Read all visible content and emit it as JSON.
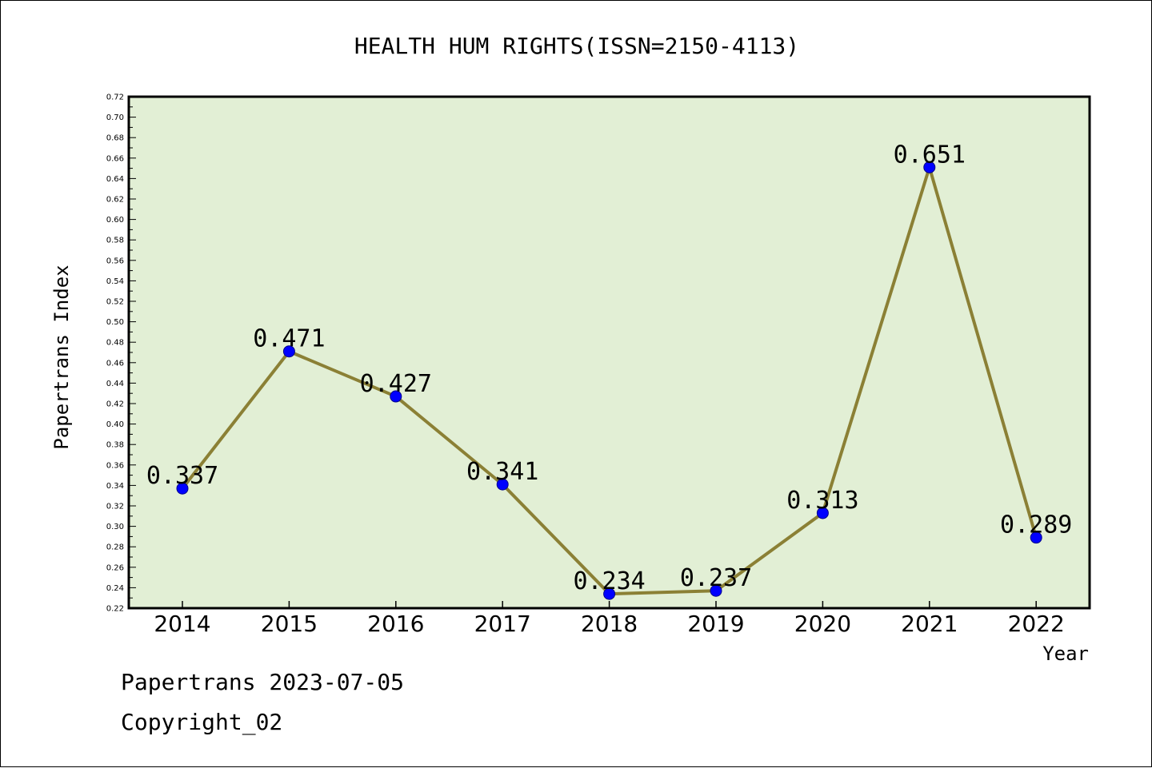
{
  "chart_data": {
    "type": "line",
    "title": "HEALTH HUM RIGHTS(ISSN=2150-4113)",
    "xlabel": "Year",
    "ylabel": "Papertrans Index",
    "categories": [
      "2014",
      "2015",
      "2016",
      "2017",
      "2018",
      "2019",
      "2020",
      "2021",
      "2022"
    ],
    "values": [
      0.337,
      0.471,
      0.427,
      0.341,
      0.234,
      0.237,
      0.313,
      0.651,
      0.289
    ],
    "data_labels": [
      "0.337",
      "0.471",
      "0.427",
      "0.341",
      "0.234",
      "0.237",
      "0.313",
      "0.651",
      "0.289"
    ],
    "ylim": [
      0.22,
      0.72
    ],
    "yticks": [
      "0.22",
      "0.24",
      "0.26",
      "0.28",
      "0.30",
      "0.32",
      "0.34",
      "0.36",
      "0.38",
      "0.40",
      "0.42",
      "0.44",
      "0.46",
      "0.48",
      "0.50",
      "0.52",
      "0.54",
      "0.56",
      "0.58",
      "0.60",
      "0.62",
      "0.64",
      "0.66",
      "0.68",
      "0.70",
      "0.72"
    ],
    "grid": false,
    "colors": {
      "plot_background": "#e2efd5",
      "line": "#8b8035",
      "marker": "#0000ff"
    }
  },
  "footer": {
    "line1": "Papertrans 2023-07-05",
    "line2": "Copyright_02"
  }
}
